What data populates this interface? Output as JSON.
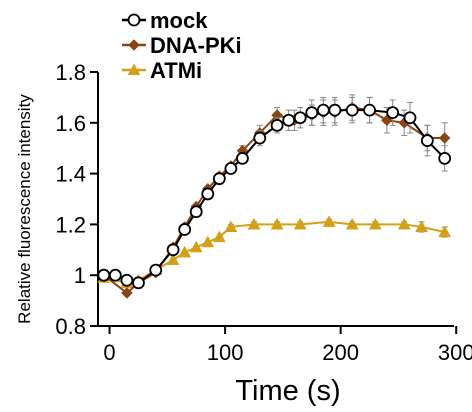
{
  "chart_data": {
    "type": "line",
    "xlabel": "Time (s)",
    "ylabel": "Relative fluorescence intensity",
    "xlim": [
      -10,
      305
    ],
    "ylim": [
      0.8,
      1.8
    ],
    "xticks": [
      0,
      100,
      200,
      300
    ],
    "yticks": [
      0.8,
      1,
      1.2,
      1.4,
      1.6,
      1.8
    ],
    "ytick_labels": [
      "0.8",
      "1",
      "1.2",
      "1.4",
      "1.6",
      "1.8"
    ],
    "xtick_labels": [
      "0",
      "100",
      "200",
      "300"
    ],
    "legend_position": "top-left",
    "error_bars": true,
    "series": [
      {
        "name": "mock",
        "color": "#000000",
        "marker": "open-circle",
        "x": [
          -5,
          5,
          15,
          25,
          40,
          55,
          65,
          75,
          85,
          95,
          105,
          115,
          130,
          145,
          155,
          165,
          175,
          185,
          195,
          210,
          225,
          245,
          260,
          275,
          290
        ],
        "y": [
          1.0,
          1.0,
          0.98,
          0.97,
          1.02,
          1.1,
          1.18,
          1.25,
          1.32,
          1.38,
          1.42,
          1.46,
          1.54,
          1.59,
          1.61,
          1.62,
          1.64,
          1.65,
          1.65,
          1.65,
          1.65,
          1.64,
          1.62,
          1.53,
          1.46
        ],
        "err": [
          0,
          0,
          0,
          0,
          0,
          0,
          0,
          0,
          0,
          0,
          0.02,
          0.02,
          0.03,
          0.03,
          0.04,
          0.04,
          0.05,
          0.05,
          0.05,
          0.05,
          0.05,
          0.05,
          0.06,
          0.06,
          0.05
        ]
      },
      {
        "name": "DNA-PKi",
        "color": "#8B4513",
        "marker": "diamond",
        "x": [
          -5,
          15,
          25,
          40,
          55,
          65,
          75,
          85,
          95,
          105,
          115,
          130,
          145,
          160,
          175,
          185,
          195,
          210,
          225,
          240,
          255,
          275,
          290
        ],
        "y": [
          1.0,
          0.93,
          0.97,
          1.01,
          1.11,
          1.19,
          1.27,
          1.34,
          1.39,
          1.43,
          1.49,
          1.56,
          1.63,
          1.61,
          1.63,
          1.64,
          1.64,
          1.66,
          1.65,
          1.61,
          1.6,
          1.54,
          1.54
        ],
        "err": [
          0,
          0,
          0,
          0,
          0,
          0,
          0,
          0,
          0,
          0,
          0.02,
          0.03,
          0.03,
          0.04,
          0.04,
          0.05,
          0.05,
          0.05,
          0.05,
          0.05,
          0.05,
          0.05,
          0.06
        ]
      },
      {
        "name": "ATMi",
        "color": "#D4A017",
        "marker": "triangle",
        "x": [
          -5,
          15,
          25,
          40,
          55,
          65,
          75,
          85,
          95,
          105,
          125,
          145,
          165,
          190,
          210,
          230,
          255,
          270,
          290
        ],
        "y": [
          0.99,
          0.97,
          0.98,
          1.02,
          1.06,
          1.09,
          1.11,
          1.13,
          1.15,
          1.19,
          1.2,
          1.2,
          1.2,
          1.21,
          1.2,
          1.2,
          1.2,
          1.19,
          1.17
        ],
        "err": [
          0,
          0,
          0,
          0,
          0,
          0,
          0,
          0,
          0,
          0.01,
          0.01,
          0.01,
          0.01,
          0.01,
          0.01,
          0.01,
          0.01,
          0.02,
          0.02
        ]
      }
    ]
  }
}
